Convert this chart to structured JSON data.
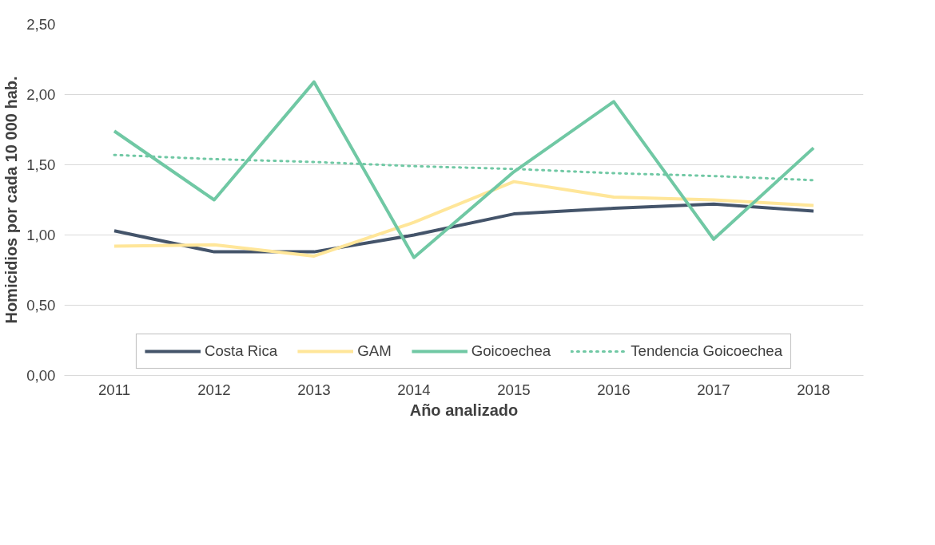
{
  "chart_data": {
    "type": "line",
    "xlabel": "Año analizado",
    "ylabel": "Homicidios por cada 10 000 hab.",
    "categories": [
      "2011",
      "2012",
      "2013",
      "2014",
      "2015",
      "2016",
      "2017",
      "2018"
    ],
    "ylim": [
      0,
      2.5
    ],
    "yticks": [
      {
        "value": 0,
        "label": "0,00"
      },
      {
        "value": 0.5,
        "label": "0,50"
      },
      {
        "value": 1,
        "label": "1,00"
      },
      {
        "value": 1.5,
        "label": "1,50"
      },
      {
        "value": 2,
        "label": "2,00"
      },
      {
        "value": 2.5,
        "label": "2,50"
      }
    ],
    "grid": "y",
    "legend": "bottom",
    "marker": "none",
    "line_style": "solid",
    "series": [
      {
        "name": "Costa Rica",
        "color": "#44546a",
        "values": [
          1.03,
          0.88,
          0.88,
          1.0,
          1.15,
          1.19,
          1.22,
          1.17
        ]
      },
      {
        "name": "GAM",
        "color": "#ffe699",
        "values": [
          0.92,
          0.93,
          0.85,
          1.09,
          1.38,
          1.27,
          1.25,
          1.21
        ]
      },
      {
        "name": "Goicoechea",
        "color": "#70c8a4",
        "values": [
          1.74,
          1.25,
          2.09,
          0.84,
          1.45,
          1.95,
          0.97,
          1.62
        ]
      },
      {
        "name": "Tendencia Goicoechea",
        "color": "#70c8a4",
        "line_style": "dotted",
        "values": [
          1.57,
          1.54,
          1.52,
          1.49,
          1.47,
          1.44,
          1.42,
          1.39
        ]
      }
    ]
  }
}
